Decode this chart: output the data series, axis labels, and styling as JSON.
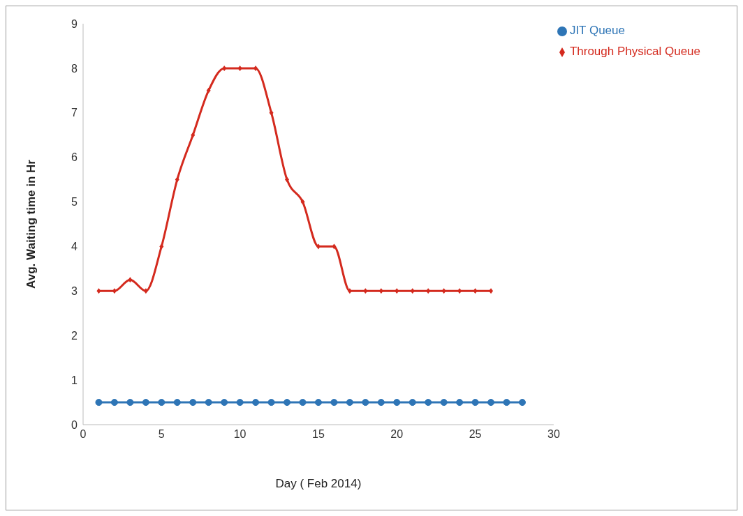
{
  "chart_data": {
    "type": "line",
    "xlabel": "Day ( Feb 2014)",
    "ylabel": "Avg. Waiting time in Hr",
    "xlim": [
      0,
      30
    ],
    "xticks": [
      0,
      5,
      10,
      15,
      20,
      25,
      30
    ],
    "ylim": [
      0,
      9
    ],
    "yticks": [
      0,
      1,
      2,
      3,
      4,
      5,
      6,
      7,
      8,
      9
    ],
    "grid": false,
    "legend": "top right",
    "line_style": "solid",
    "series": [
      {
        "name": "JIT Queue",
        "color": "#2e75b6",
        "marker": "circle",
        "x": [
          1,
          2,
          3,
          4,
          5,
          6,
          7,
          8,
          9,
          10,
          11,
          12,
          13,
          14,
          15,
          16,
          17,
          18,
          19,
          20,
          21,
          22,
          23,
          24,
          25,
          26,
          27,
          28
        ],
        "values": [
          0.5,
          0.5,
          0.5,
          0.5,
          0.5,
          0.5,
          0.5,
          0.5,
          0.5,
          0.5,
          0.5,
          0.5,
          0.5,
          0.5,
          0.5,
          0.5,
          0.5,
          0.5,
          0.5,
          0.5,
          0.5,
          0.5,
          0.5,
          0.5,
          0.5,
          0.5,
          0.5,
          0.5
        ]
      },
      {
        "name": "Through Physical Queue",
        "color": "#d42a1e",
        "marker": "diamond",
        "x": [
          1,
          2,
          3,
          4,
          5,
          6,
          7,
          8,
          9,
          10,
          11,
          12,
          13,
          14,
          15,
          16,
          17,
          18,
          19,
          20,
          21,
          22,
          23,
          24,
          25,
          26
        ],
        "values": [
          3,
          3,
          3.25,
          3,
          4,
          5.5,
          6.5,
          7.5,
          8,
          8,
          8,
          7,
          5.5,
          5,
          4,
          4,
          3,
          3,
          3,
          3,
          3,
          3,
          3,
          3,
          3,
          3
        ]
      }
    ]
  }
}
